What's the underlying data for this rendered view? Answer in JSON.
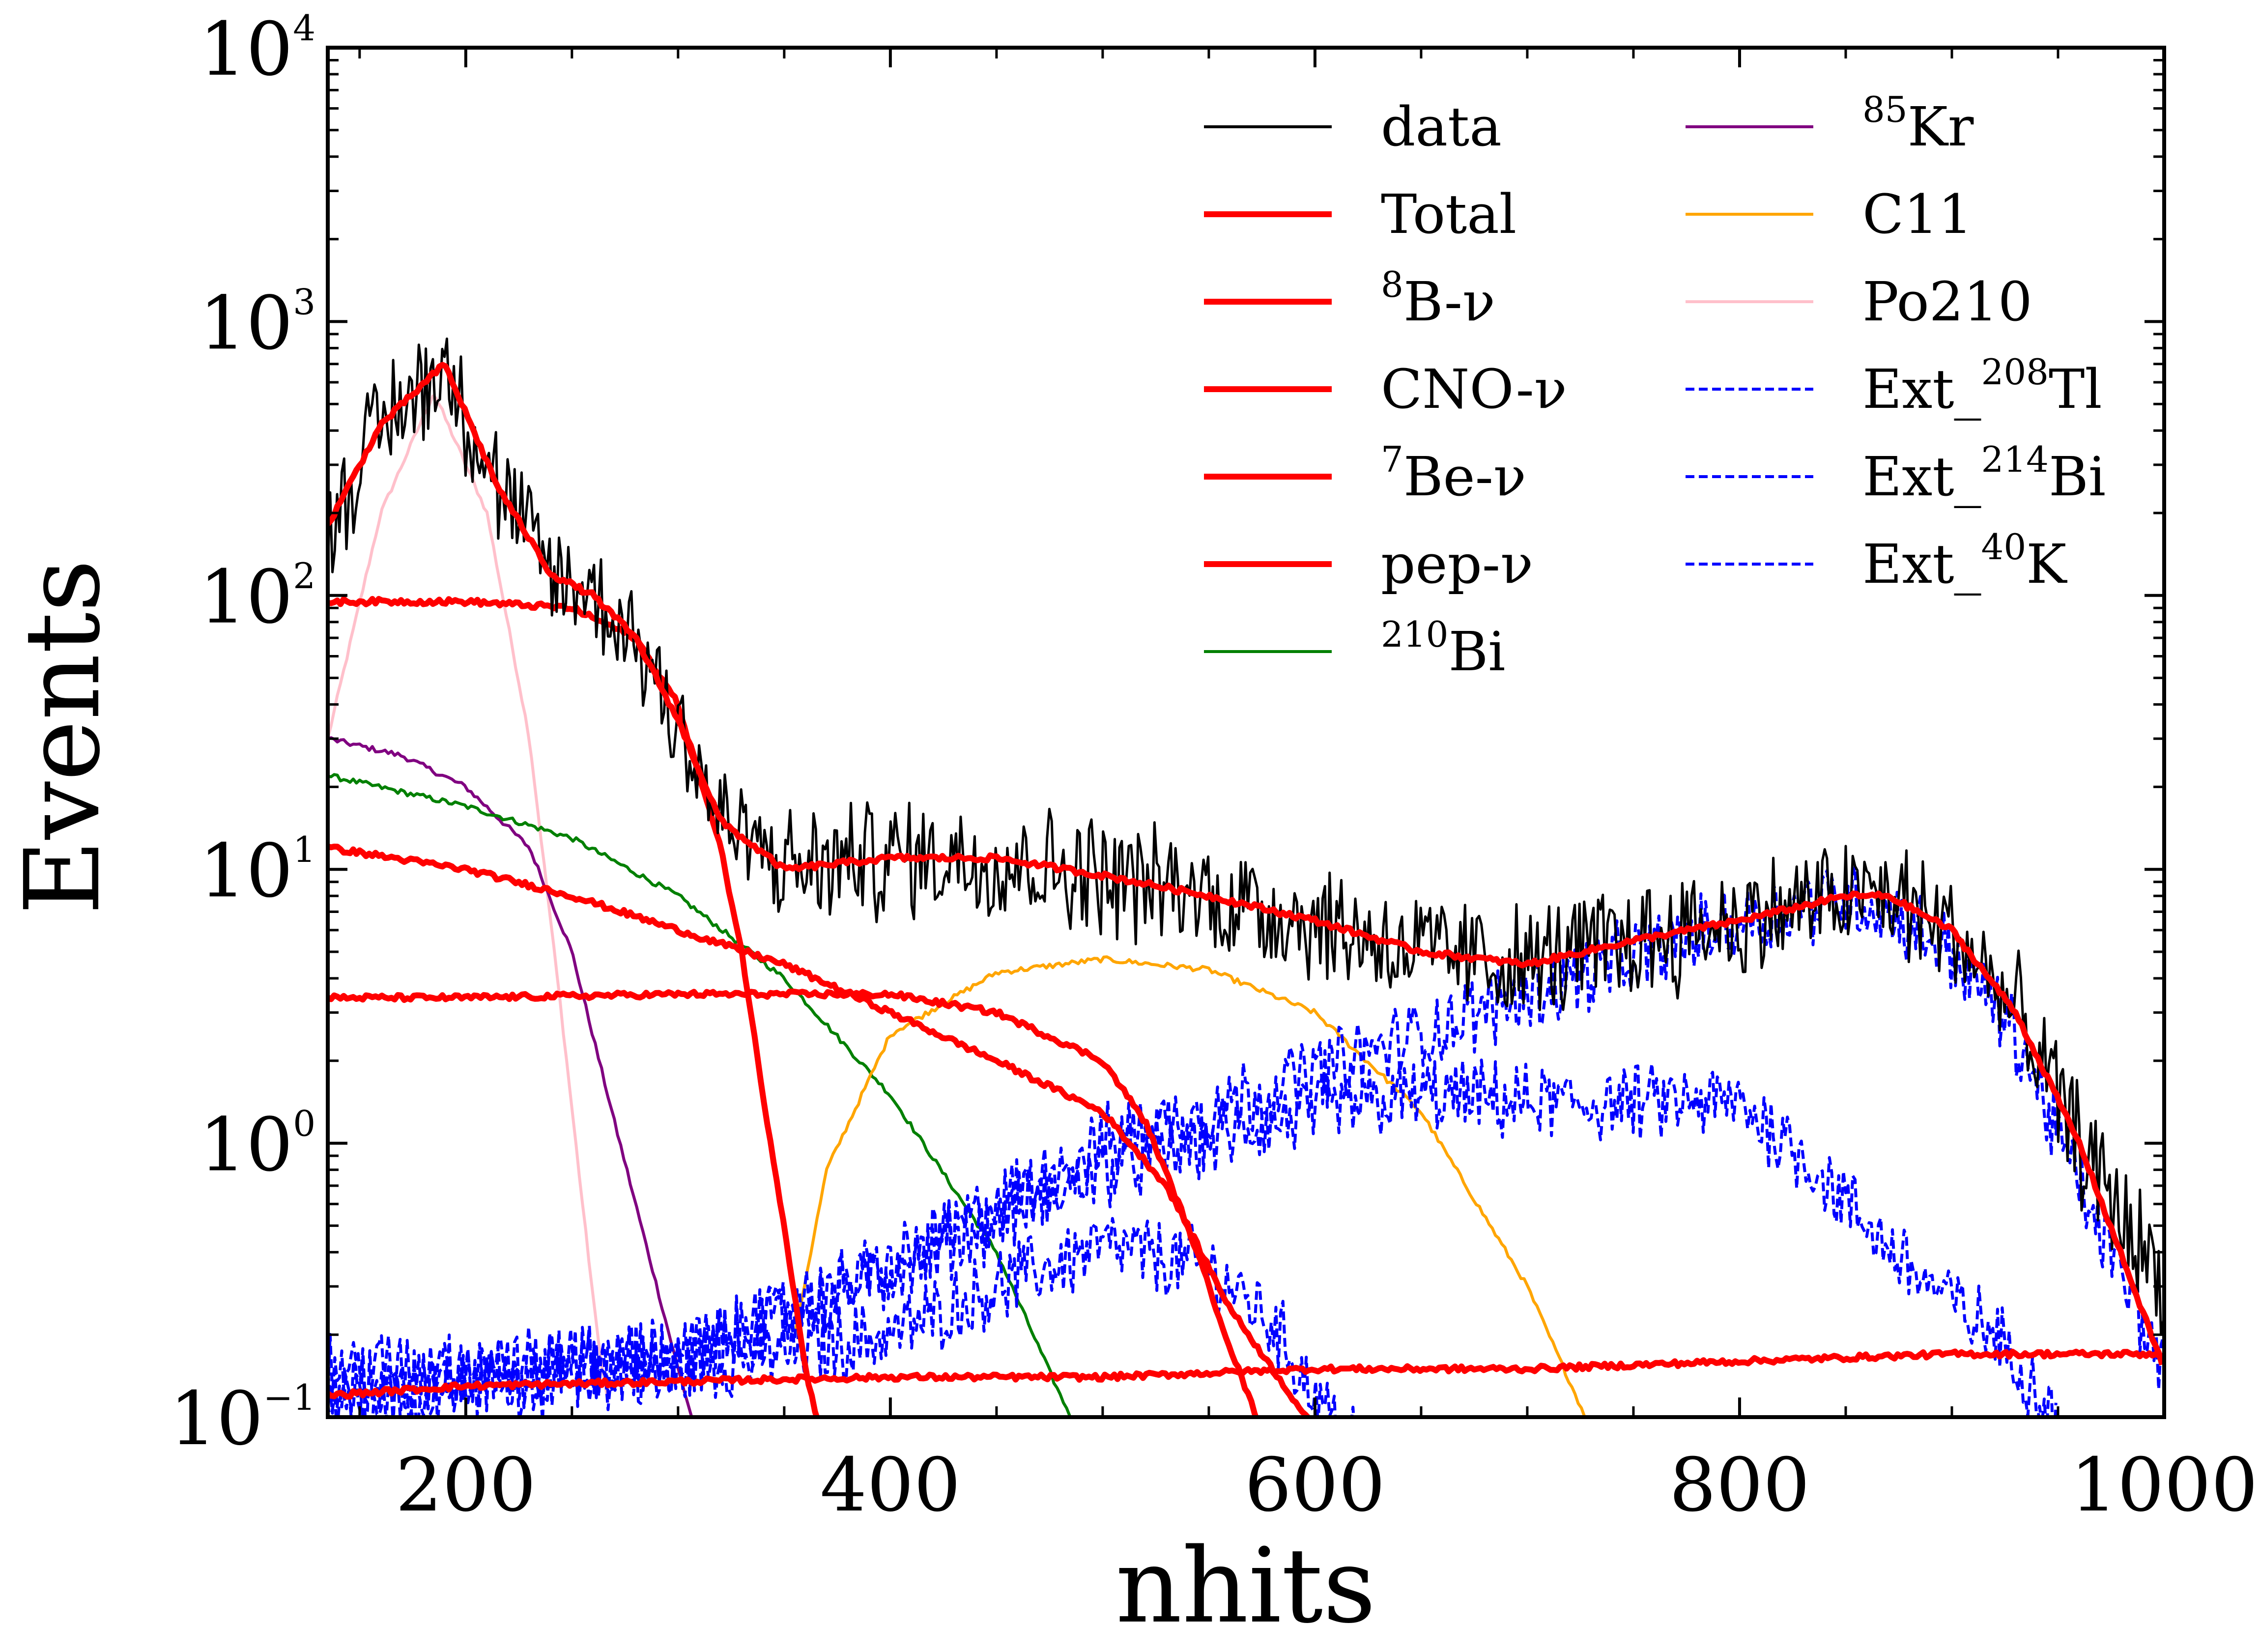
{
  "chart_data": {
    "type": "line",
    "title": "",
    "xlabel": "nhits",
    "ylabel": "Events",
    "xlim": [
      135,
      1000
    ],
    "ylim": [
      0.1,
      10000
    ],
    "yscale": "log",
    "xticks": [
      200,
      400,
      600,
      800,
      1000
    ],
    "xtick_labels": [
      "200",
      "400",
      "600",
      "800",
      "1000"
    ],
    "yticks": [
      0.1,
      1,
      10,
      100,
      1000,
      10000
    ],
    "ytick_labels": [
      {
        "base": "10",
        "exp": "−1"
      },
      {
        "base": "10",
        "exp": "0"
      },
      {
        "base": "10",
        "exp": "1"
      },
      {
        "base": "10",
        "exp": "2"
      },
      {
        "base": "10",
        "exp": "3"
      },
      {
        "base": "10",
        "exp": "4"
      }
    ],
    "legend_position": "top-right",
    "series": [
      {
        "id": "data",
        "label": "data",
        "sup": "",
        "color": "#000000",
        "dashed": false,
        "style": "noisy",
        "noise": 0.55,
        "x": [
          135,
          160,
          190,
          215,
          240,
          260,
          280,
          300,
          320,
          350,
          400,
          450,
          500,
          550,
          600,
          650,
          700,
          750,
          800,
          850,
          870,
          900,
          930,
          960,
          1000
        ],
        "y": [
          180,
          420,
          700,
          250,
          120,
          100,
          70,
          35,
          15,
          10,
          11,
          11,
          9.5,
          8,
          6.5,
          5,
          4.5,
          5.5,
          6.5,
          8,
          8,
          6,
          3,
          1,
          0.3
        ]
      },
      {
        "id": "total",
        "label": "Total",
        "sup": "",
        "color": "#ff0000",
        "dashed": false,
        "style": "thick",
        "x": [
          135,
          160,
          190,
          215,
          240,
          260,
          280,
          300,
          320,
          350,
          400,
          450,
          500,
          550,
          600,
          650,
          700,
          750,
          800,
          850,
          870,
          900,
          930,
          960,
          1000
        ],
        "y": [
          180,
          420,
          700,
          250,
          120,
          100,
          70,
          35,
          15,
          10,
          11,
          11,
          9.5,
          8,
          6.5,
          5,
          4.5,
          5.5,
          6.5,
          8,
          8,
          6,
          3,
          1,
          0.15
        ]
      },
      {
        "id": "b8",
        "label": "B-ν",
        "sup": "8",
        "color": "#ff0000",
        "dashed": false,
        "style": "thick",
        "x": [
          135,
          200,
          400,
          500,
          600,
          700,
          800,
          900,
          1000
        ],
        "y": [
          0.12,
          0.13,
          0.14,
          0.14,
          0.15,
          0.15,
          0.16,
          0.17,
          0.17
        ]
      },
      {
        "id": "cno",
        "label": "CNO-ν",
        "sup": "",
        "color": "#ff0000",
        "dashed": false,
        "style": "thick",
        "x": [
          135,
          200,
          250,
          300,
          350,
          400,
          450,
          500,
          530,
          560,
          600
        ],
        "y": [
          12,
          10,
          8,
          6,
          4.5,
          3,
          2,
          1.3,
          0.7,
          0.25,
          0.09
        ]
      },
      {
        "id": "be7",
        "label": "Be-ν",
        "sup": "7",
        "color": "#ff0000",
        "dashed": false,
        "style": "thick",
        "x": [
          135,
          200,
          250,
          280,
          300,
          320,
          330,
          340,
          350,
          360,
          370
        ],
        "y": [
          95,
          95,
          90,
          70,
          40,
          12,
          5,
          1.5,
          0.5,
          0.15,
          0.07
        ]
      },
      {
        "id": "pep",
        "label": "pep-ν",
        "sup": "",
        "color": "#ff0000",
        "dashed": false,
        "style": "thick",
        "x": [
          135,
          200,
          300,
          400,
          450,
          500,
          520,
          540,
          560,
          580
        ],
        "y": [
          3.4,
          3.4,
          3.5,
          3.5,
          3.0,
          2.0,
          1.2,
          0.5,
          0.18,
          0.07
        ]
      },
      {
        "id": "bi210",
        "label": "Bi",
        "sup": "210",
        "color": "#008000",
        "dashed": false,
        "style": "thin",
        "x": [
          135,
          200,
          250,
          300,
          350,
          400,
          450,
          480,
          500
        ],
        "y": [
          22,
          17,
          13,
          8,
          4,
          1.5,
          0.4,
          0.12,
          0.06
        ]
      },
      {
        "id": "kr85",
        "label": "Kr",
        "sup": "85",
        "color": "#800080",
        "dashed": false,
        "style": "thin",
        "x": [
          135,
          170,
          200,
          230,
          250,
          270,
          290,
          300,
          310,
          320
        ],
        "y": [
          30,
          26,
          20,
          12,
          5,
          1.2,
          0.3,
          0.15,
          0.08,
          0.05
        ]
      },
      {
        "id": "c11",
        "label": "C11",
        "sup": "",
        "color": "#ffa500",
        "dashed": false,
        "style": "thin",
        "x": [
          355,
          370,
          400,
          450,
          500,
          550,
          600,
          650,
          700,
          730
        ],
        "y": [
          0.2,
          0.8,
          2.5,
          4.2,
          4.7,
          4.3,
          3.0,
          1.3,
          0.3,
          0.09
        ]
      },
      {
        "id": "po210",
        "label": "Po210",
        "sup": "",
        "color": "#ffc0cb",
        "dashed": false,
        "style": "thin",
        "x": [
          135,
          160,
          185,
          210,
          230,
          245,
          255,
          262,
          268
        ],
        "y": [
          30,
          200,
          550,
          200,
          30,
          3,
          0.6,
          0.2,
          0.1
        ]
      },
      {
        "id": "tl208",
        "label": "Ext_",
        "sup": "208",
        "suffix": "Tl",
        "color": "#0000ff",
        "dashed": true,
        "style": "noisy",
        "noise": 0.35,
        "x": [
          135,
          300,
          400,
          500,
          600,
          700,
          800,
          850,
          870,
          900,
          930,
          960,
          1000
        ],
        "y": [
          0.15,
          0.16,
          0.35,
          1.0,
          1.8,
          3.5,
          6.5,
          8,
          7,
          5,
          2.5,
          0.7,
          0.15
        ]
      },
      {
        "id": "bi214",
        "label": "Ext_",
        "sup": "214",
        "suffix": "Bi",
        "color": "#0000ff",
        "dashed": true,
        "style": "noisy",
        "noise": 0.35,
        "x": [
          135,
          300,
          400,
          500,
          600,
          650,
          700,
          750,
          800,
          830,
          860,
          890,
          920,
          950
        ],
        "y": [
          0.12,
          0.17,
          0.35,
          0.8,
          1.3,
          1.5,
          1.4,
          1.4,
          1.4,
          0.9,
          0.5,
          0.3,
          0.2,
          0.1
        ]
      },
      {
        "id": "k40",
        "label": "Ext_",
        "sup": "40",
        "suffix": "K",
        "color": "#0000ff",
        "dashed": true,
        "style": "noisy",
        "noise": 0.35,
        "x": [
          135,
          300,
          400,
          450,
          500,
          550,
          580,
          600,
          620
        ],
        "y": [
          0.12,
          0.15,
          0.2,
          0.3,
          0.42,
          0.35,
          0.22,
          0.12,
          0.08
        ]
      }
    ]
  }
}
